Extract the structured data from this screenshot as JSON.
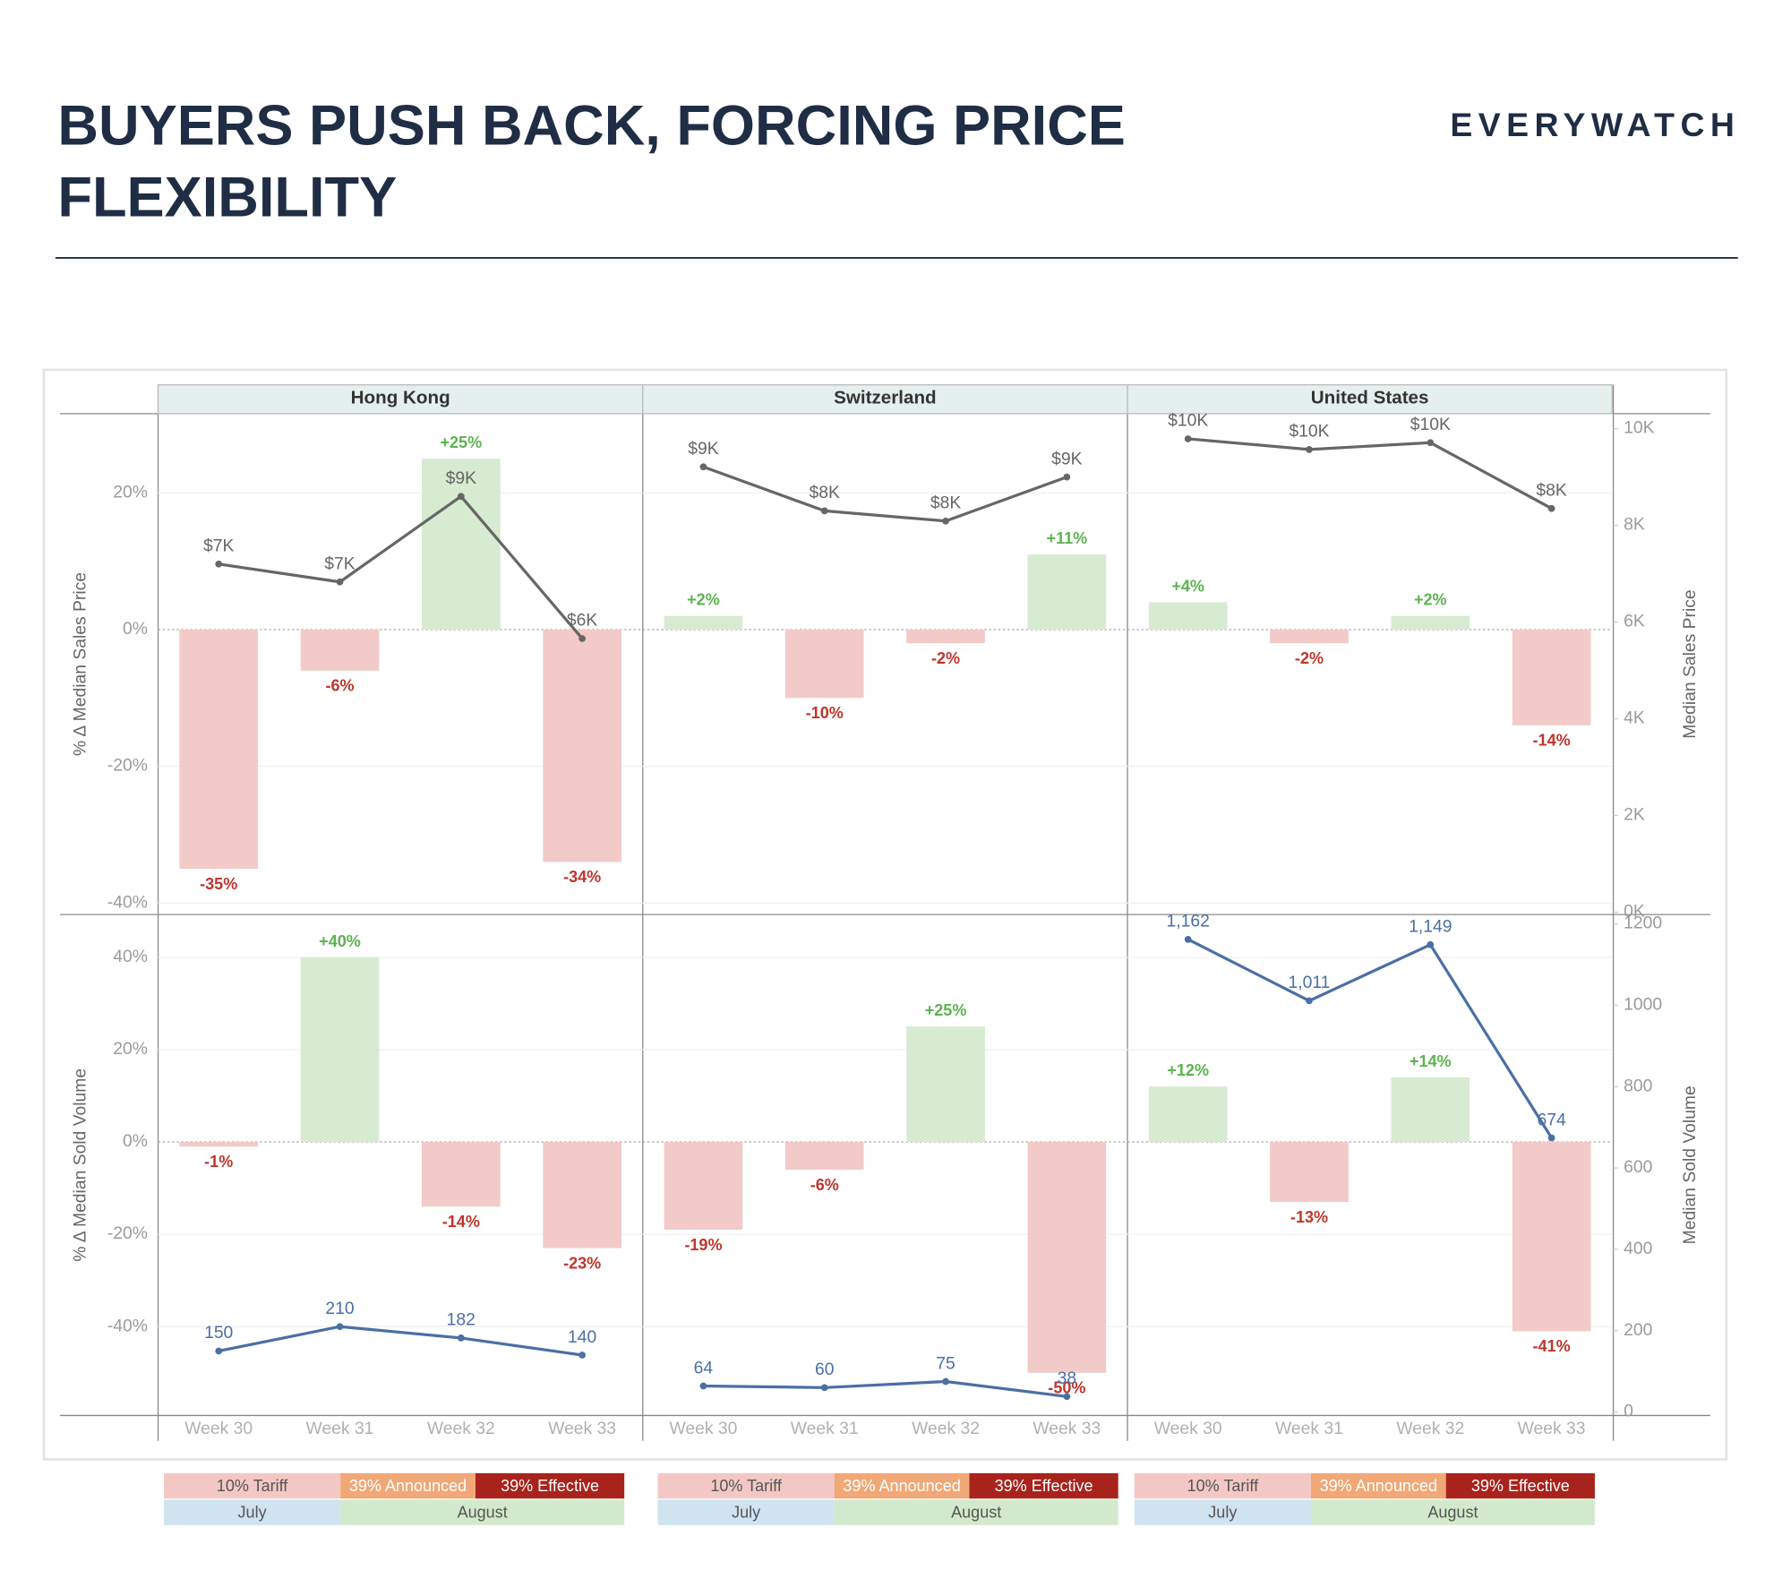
{
  "header": {
    "title_lines": [
      "BUYERS PUSH BACK, FORCING PRICE",
      "FLEXIBILITY"
    ],
    "brand": "EVERYWATCH"
  },
  "chart_data": [
    {
      "type": "bar",
      "facets": [
        "Hong Kong",
        "Switzerland",
        "United States"
      ],
      "ylabel": "% Δ Median Sales Price",
      "y2label": "Median Sales Price",
      "ylim": [
        -41.7,
        31.6
      ],
      "yticks": [
        {
          "value": -40,
          "label": "-40%"
        },
        {
          "value": -20,
          "label": "-20%"
        },
        {
          "value": 0,
          "label": "0%"
        },
        {
          "value": 20,
          "label": "20%"
        }
      ],
      "y2lim": [
        -48,
        10310
      ],
      "y2ticks": [
        {
          "value": 0,
          "label": "0K"
        },
        {
          "value": 2000,
          "label": "2K"
        },
        {
          "value": 4000,
          "label": "4K"
        },
        {
          "value": 6000,
          "label": "6K"
        },
        {
          "value": 8000,
          "label": "8K"
        },
        {
          "value": 10000,
          "label": "10K"
        }
      ],
      "colors": {
        "positive": "#d6ebd0",
        "negative": "#f2cac8",
        "positive_label": "#5cb34f",
        "negative_label": "#c0352b"
      },
      "panels": [
        {
          "bars": {
            "values": [
              -35,
              -6,
              25,
              -34
            ],
            "value_labels": [
              "-35%",
              "-6%",
              "+25%",
              "-34%"
            ]
          },
          "line": {
            "axis": "y2",
            "color": "#666666",
            "values": [
              7200,
              6830,
              8600,
              5660
            ],
            "value_labels": [
              "$7K",
              "$7K",
              "$9K",
              "$6K"
            ]
          }
        },
        {
          "bars": {
            "values": [
              2,
              -10,
              -2,
              11
            ],
            "value_labels": [
              "+2%",
              "-10%",
              "-2%",
              "+11%"
            ]
          },
          "line": {
            "axis": "y2",
            "color": "#666666",
            "values": [
              9210,
              8300,
              8090,
              9000
            ],
            "value_labels": [
              "$9K",
              "$8K",
              "$8K",
              "$9K"
            ]
          }
        },
        {
          "bars": {
            "values": [
              4,
              -2,
              2,
              -14
            ],
            "value_labels": [
              "+4%",
              "-2%",
              "+2%",
              "-14%"
            ]
          },
          "line": {
            "axis": "y2",
            "color": "#666666",
            "values": [
              9790,
              9570,
              9710,
              8350
            ],
            "value_labels": [
              "$10K",
              "$10K",
              "$10K",
              "$8K"
            ]
          }
        }
      ]
    },
    {
      "type": "bar",
      "categories": [
        "Week 30",
        "Week 31",
        "Week 32",
        "Week 33"
      ],
      "ylabel": "% Δ Median Sold Volume",
      "y2label": "Median Sold Volume",
      "ylim": [
        -59.25,
        49.25
      ],
      "yticks": [
        {
          "value": -40,
          "label": "-40%"
        },
        {
          "value": -20,
          "label": "-20%"
        },
        {
          "value": 0,
          "label": "0%"
        },
        {
          "value": 20,
          "label": "20%"
        },
        {
          "value": 40,
          "label": "40%"
        }
      ],
      "y2lim": [
        -8.5,
        1223
      ],
      "y2ticks": [
        0,
        200,
        400,
        600,
        800,
        1000,
        1200
      ],
      "colors": {
        "positive": "#d6ebd0",
        "negative": "#f2cac8",
        "positive_label": "#5cb34f",
        "negative_label": "#c0352b"
      },
      "panels": [
        {
          "bars": {
            "values": [
              -1,
              40,
              -14,
              -23
            ],
            "value_labels": [
              "-1%",
              "+40%",
              "-14%",
              "-23%"
            ]
          },
          "line": {
            "axis": "y2",
            "color": "#4a6fa5",
            "values": [
              150,
              210,
              182,
              140
            ]
          }
        },
        {
          "bars": {
            "values": [
              -19,
              -6,
              25,
              -50
            ],
            "value_labels": [
              "-19%",
              "-6%",
              "+25%",
              "-50%"
            ]
          },
          "line": {
            "axis": "y2",
            "color": "#4a6fa5",
            "values": [
              64,
              60,
              75,
              38
            ]
          }
        },
        {
          "bars": {
            "values": [
              12,
              -13,
              14,
              -41
            ],
            "value_labels": [
              "+12%",
              "-13%",
              "+14%",
              "-41%"
            ]
          },
          "line": {
            "axis": "y2",
            "color": "#4a6fa5",
            "values": [
              1162,
              1011,
              1149,
              674
            ],
            "value_labels": [
              "1,162",
              "1,011",
              "1,149",
              "674"
            ]
          }
        }
      ]
    }
  ],
  "timeline": {
    "phases": [
      "10% Tariff",
      "39% Announced",
      "39% Effective"
    ],
    "phase_colors": [
      "#f3c8c4",
      "#f0a877",
      "#a8231c"
    ],
    "months": [
      "July",
      "August"
    ],
    "month_colors": [
      "#cfe3f0",
      "#d2eacb"
    ]
  }
}
